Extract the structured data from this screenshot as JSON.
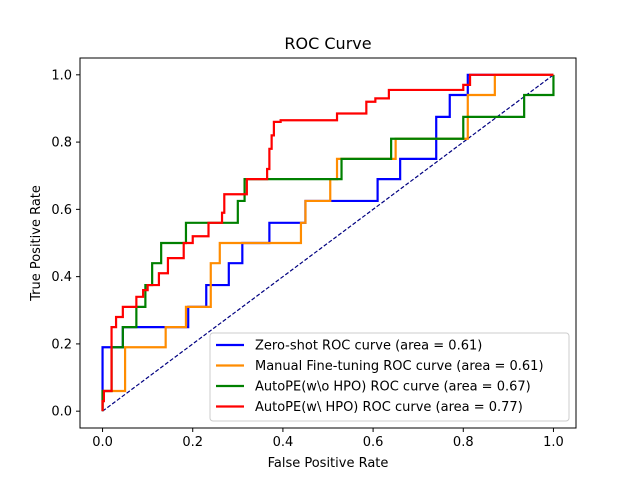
{
  "chart_data": {
    "type": "line",
    "title": "ROC Curve",
    "xlabel": "False Positive Rate",
    "ylabel": "True Positive Rate",
    "xlim": [
      -0.05,
      1.05
    ],
    "ylim": [
      -0.05,
      1.05
    ],
    "xticks": [
      "0.0",
      "0.2",
      "0.4",
      "0.6",
      "0.8",
      "1.0"
    ],
    "yticks": [
      "0.0",
      "0.2",
      "0.4",
      "0.6",
      "0.8",
      "1.0"
    ],
    "grid": false,
    "legend_position": "lower-right",
    "diagonal": {
      "color": "#000080",
      "style": "dashed",
      "points": [
        [
          0,
          0
        ],
        [
          1,
          1
        ]
      ]
    },
    "series": [
      {
        "name": "Zero-shot ROC curve (area = 0.61)",
        "color": "#0000ff",
        "points": [
          [
            0,
            0
          ],
          [
            0,
            0.19
          ],
          [
            0.045,
            0.19
          ],
          [
            0.045,
            0.25
          ],
          [
            0.14,
            0.25
          ],
          [
            0.14,
            0.25
          ],
          [
            0.19,
            0.25
          ],
          [
            0.19,
            0.31
          ],
          [
            0.23,
            0.31
          ],
          [
            0.23,
            0.375
          ],
          [
            0.28,
            0.375
          ],
          [
            0.28,
            0.44
          ],
          [
            0.31,
            0.44
          ],
          [
            0.31,
            0.5
          ],
          [
            0.37,
            0.5
          ],
          [
            0.37,
            0.56
          ],
          [
            0.45,
            0.56
          ],
          [
            0.45,
            0.625
          ],
          [
            0.61,
            0.625
          ],
          [
            0.61,
            0.69
          ],
          [
            0.66,
            0.69
          ],
          [
            0.66,
            0.75
          ],
          [
            0.74,
            0.75
          ],
          [
            0.74,
            0.875
          ],
          [
            0.77,
            0.875
          ],
          [
            0.77,
            0.94
          ],
          [
            0.81,
            0.94
          ],
          [
            0.81,
            1.0
          ],
          [
            1.0,
            1.0
          ]
        ]
      },
      {
        "name": "Manual Fine-tuning ROC curve (area = 0.61)",
        "color": "#ff8c00",
        "points": [
          [
            0,
            0
          ],
          [
            0,
            0.06
          ],
          [
            0.05,
            0.06
          ],
          [
            0.05,
            0.19
          ],
          [
            0.14,
            0.19
          ],
          [
            0.14,
            0.25
          ],
          [
            0.185,
            0.25
          ],
          [
            0.185,
            0.31
          ],
          [
            0.24,
            0.31
          ],
          [
            0.24,
            0.44
          ],
          [
            0.26,
            0.44
          ],
          [
            0.26,
            0.5
          ],
          [
            0.44,
            0.5
          ],
          [
            0.44,
            0.56
          ],
          [
            0.45,
            0.56
          ],
          [
            0.45,
            0.625
          ],
          [
            0.505,
            0.625
          ],
          [
            0.505,
            0.69
          ],
          [
            0.52,
            0.69
          ],
          [
            0.52,
            0.75
          ],
          [
            0.65,
            0.75
          ],
          [
            0.65,
            0.81
          ],
          [
            0.81,
            0.81
          ],
          [
            0.81,
            0.94
          ],
          [
            0.87,
            0.94
          ],
          [
            0.87,
            1.0
          ],
          [
            1.0,
            1.0
          ]
        ]
      },
      {
        "name": "AutoPE(w\\o HPO) ROC curve (area = 0.67)",
        "color": "#008000",
        "points": [
          [
            0,
            0
          ],
          [
            0,
            0.06
          ],
          [
            0.02,
            0.06
          ],
          [
            0.02,
            0.19
          ],
          [
            0.045,
            0.19
          ],
          [
            0.045,
            0.25
          ],
          [
            0.075,
            0.25
          ],
          [
            0.075,
            0.31
          ],
          [
            0.095,
            0.31
          ],
          [
            0.095,
            0.375
          ],
          [
            0.11,
            0.375
          ],
          [
            0.11,
            0.44
          ],
          [
            0.13,
            0.44
          ],
          [
            0.13,
            0.5
          ],
          [
            0.185,
            0.5
          ],
          [
            0.185,
            0.56
          ],
          [
            0.26,
            0.56
          ],
          [
            0.26,
            0.56
          ],
          [
            0.3,
            0.56
          ],
          [
            0.3,
            0.625
          ],
          [
            0.315,
            0.625
          ],
          [
            0.315,
            0.69
          ],
          [
            0.53,
            0.69
          ],
          [
            0.53,
            0.75
          ],
          [
            0.64,
            0.75
          ],
          [
            0.64,
            0.81
          ],
          [
            0.8,
            0.81
          ],
          [
            0.8,
            0.875
          ],
          [
            0.935,
            0.875
          ],
          [
            0.935,
            0.94
          ],
          [
            1.0,
            0.94
          ],
          [
            1.0,
            1.0
          ]
        ]
      },
      {
        "name": "AutoPE(w\\ HPO) ROC curve (area = 0.77)",
        "color": "#ff0000",
        "points": [
          [
            0,
            0
          ],
          [
            0,
            0.03
          ],
          [
            0.003,
            0.03
          ],
          [
            0.003,
            0.06
          ],
          [
            0.02,
            0.06
          ],
          [
            0.02,
            0.25
          ],
          [
            0.03,
            0.25
          ],
          [
            0.03,
            0.28
          ],
          [
            0.045,
            0.28
          ],
          [
            0.045,
            0.31
          ],
          [
            0.075,
            0.31
          ],
          [
            0.075,
            0.34
          ],
          [
            0.09,
            0.34
          ],
          [
            0.09,
            0.36
          ],
          [
            0.1,
            0.36
          ],
          [
            0.1,
            0.375
          ],
          [
            0.125,
            0.375
          ],
          [
            0.125,
            0.41
          ],
          [
            0.145,
            0.41
          ],
          [
            0.145,
            0.455
          ],
          [
            0.18,
            0.455
          ],
          [
            0.18,
            0.5
          ],
          [
            0.2,
            0.5
          ],
          [
            0.2,
            0.52
          ],
          [
            0.235,
            0.52
          ],
          [
            0.235,
            0.56
          ],
          [
            0.265,
            0.56
          ],
          [
            0.265,
            0.59
          ],
          [
            0.27,
            0.59
          ],
          [
            0.27,
            0.645
          ],
          [
            0.32,
            0.645
          ],
          [
            0.32,
            0.69
          ],
          [
            0.365,
            0.69
          ],
          [
            0.365,
            0.72
          ],
          [
            0.37,
            0.72
          ],
          [
            0.37,
            0.78
          ],
          [
            0.375,
            0.78
          ],
          [
            0.375,
            0.82
          ],
          [
            0.38,
            0.82
          ],
          [
            0.38,
            0.86
          ],
          [
            0.395,
            0.86
          ],
          [
            0.395,
            0.865
          ],
          [
            0.52,
            0.865
          ],
          [
            0.52,
            0.885
          ],
          [
            0.585,
            0.885
          ],
          [
            0.585,
            0.92
          ],
          [
            0.605,
            0.92
          ],
          [
            0.605,
            0.93
          ],
          [
            0.635,
            0.93
          ],
          [
            0.635,
            0.955
          ],
          [
            0.8,
            0.955
          ],
          [
            0.8,
            0.97
          ],
          [
            0.815,
            0.97
          ],
          [
            0.815,
            1.0
          ],
          [
            1.0,
            1.0
          ]
        ]
      }
    ]
  }
}
